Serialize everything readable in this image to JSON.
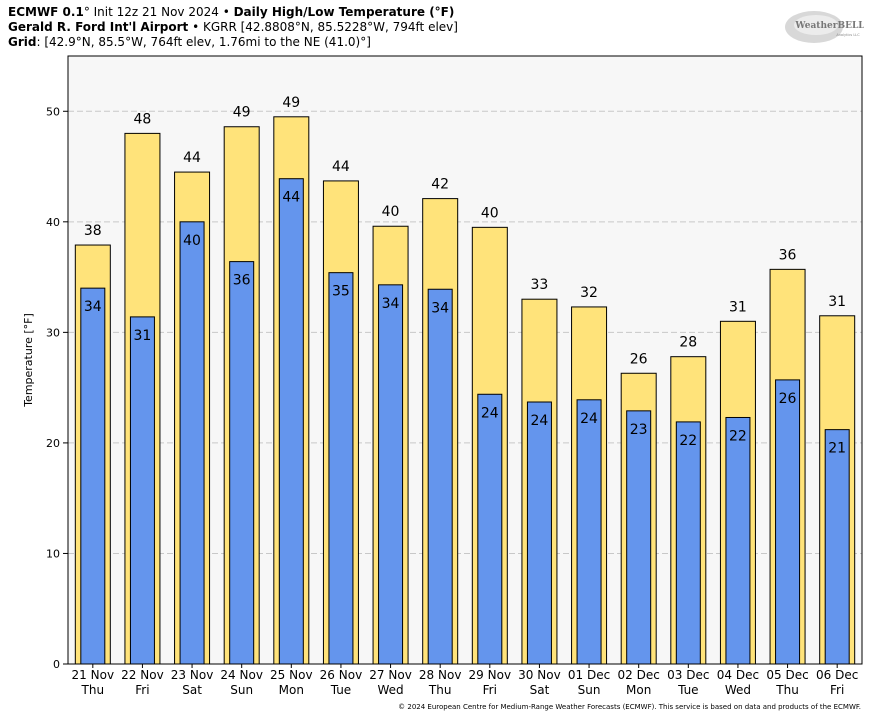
{
  "header": {
    "model": "ECMWF 0.1",
    "init_text": "° Init 12z 21 Nov 2024 • ",
    "product": "Daily High/Low Temperature (°F)",
    "station": "Gerald R. Ford Int'l Airport",
    "station_detail": " • KGRR [42.8808°N, 85.5228°W, 794ft elev]",
    "grid_label": "Grid",
    "grid_detail": ": [42.9°N, 85.5°W, 764ft elev, 1.76mi to the NE (41.0)°]"
  },
  "logo": {
    "text": "WeatherBELL",
    "subtext": "Analytics LLC"
  },
  "copyright": "© 2024 European Centre for Medium-Range Weather Forecasts (ECMWF). This service is based on data and products of the ECMWF.",
  "chart_data": {
    "type": "bar",
    "title": "Daily High/Low Temperature (°F)",
    "ylabel": "Temperature [°F]",
    "ylim": [
      0,
      55
    ],
    "yticks": [
      0,
      10,
      20,
      30,
      40,
      50
    ],
    "grid": true,
    "categories": [
      "21 Nov",
      "22 Nov",
      "23 Nov",
      "24 Nov",
      "25 Nov",
      "26 Nov",
      "27 Nov",
      "28 Nov",
      "29 Nov",
      "30 Nov",
      "01 Dec",
      "02 Dec",
      "03 Dec",
      "04 Dec",
      "05 Dec",
      "06 Dec"
    ],
    "weekdays": [
      "Thu",
      "Fri",
      "Sat",
      "Sun",
      "Mon",
      "Tue",
      "Wed",
      "Thu",
      "Fri",
      "Sat",
      "Sun",
      "Mon",
      "Tue",
      "Wed",
      "Thu",
      "Fri"
    ],
    "series": [
      {
        "values": [
          37.9,
          48.0,
          44.5,
          48.6,
          49.5,
          43.7,
          39.6,
          42.1,
          39.5,
          33.0,
          32.3,
          26.3,
          27.8,
          31.0,
          35.7,
          31.5
        ],
        "labels": [
          "38",
          "48",
          "44",
          "49",
          "49",
          "44",
          "40",
          "42",
          "40",
          "33",
          "32",
          "26",
          "28",
          "31",
          "36",
          "31"
        ],
        "color": "#ffe37a"
      },
      {
        "values": [
          34.0,
          31.4,
          40.0,
          36.4,
          43.9,
          35.4,
          34.3,
          33.9,
          24.4,
          23.7,
          23.9,
          22.9,
          21.9,
          22.3,
          25.7,
          21.2
        ],
        "labels": [
          "34",
          "31",
          "40",
          "36",
          "44",
          "35",
          "34",
          "34",
          "24",
          "24",
          "24",
          "23",
          "22",
          "22",
          "26",
          "21"
        ],
        "color": "#6495ed"
      }
    ],
    "colors": {
      "plot_bg": "#f7f7f7",
      "grid": "#c8c8c8",
      "high": "#ffe37a",
      "low": "#6495ed"
    }
  }
}
